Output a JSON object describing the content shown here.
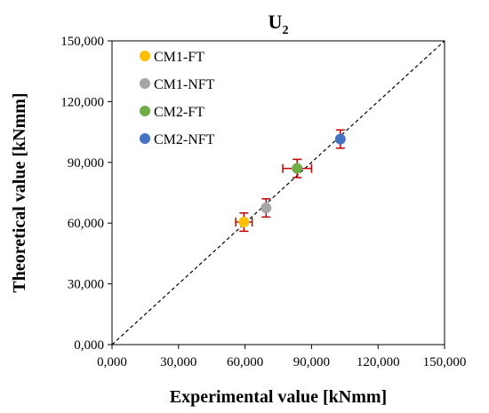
{
  "chart_data": {
    "type": "scatter",
    "title_main": "U",
    "title_sub": "2",
    "xlabel": "Experimental value [kNmm]",
    "ylabel": "Theoretical value [kNmm]",
    "xlim": [
      0,
      150000
    ],
    "ylim": [
      0,
      150000
    ],
    "x_ticks": [
      0,
      30000,
      60000,
      90000,
      120000,
      150000
    ],
    "y_ticks": [
      0,
      30000,
      60000,
      90000,
      120000,
      150000
    ],
    "x_tick_labels": [
      "0,000",
      "30,000",
      "60,000",
      "90,000",
      "120,000",
      "150,000"
    ],
    "y_tick_labels": [
      "0,000",
      "30,000",
      "60,000",
      "90,000",
      "120,000",
      "150,000"
    ],
    "grid": false,
    "legend_position": "top-left",
    "reference_line": {
      "style": "dashed",
      "color": "#000000",
      "from": [
        0,
        0
      ],
      "to": [
        150000,
        150000
      ]
    },
    "error_bar_color": "#c00000",
    "series": [
      {
        "name": "CM1-FT",
        "color": "#ffc000",
        "x": 59500,
        "y": 60500,
        "x_err": 3700,
        "y_err": 4500
      },
      {
        "name": "CM1-NFT",
        "color": "#a5a5a5",
        "x": 69500,
        "y": 67500,
        "x_err": 0,
        "y_err": 4500
      },
      {
        "name": "CM2-FT",
        "color": "#70ad47",
        "x": 83500,
        "y": 87000,
        "x_err": 6500,
        "y_err": 4500
      },
      {
        "name": "CM2-NFT",
        "color": "#4472c4",
        "x": 103000,
        "y": 101500,
        "x_err": 0,
        "y_err": 4500
      }
    ]
  }
}
